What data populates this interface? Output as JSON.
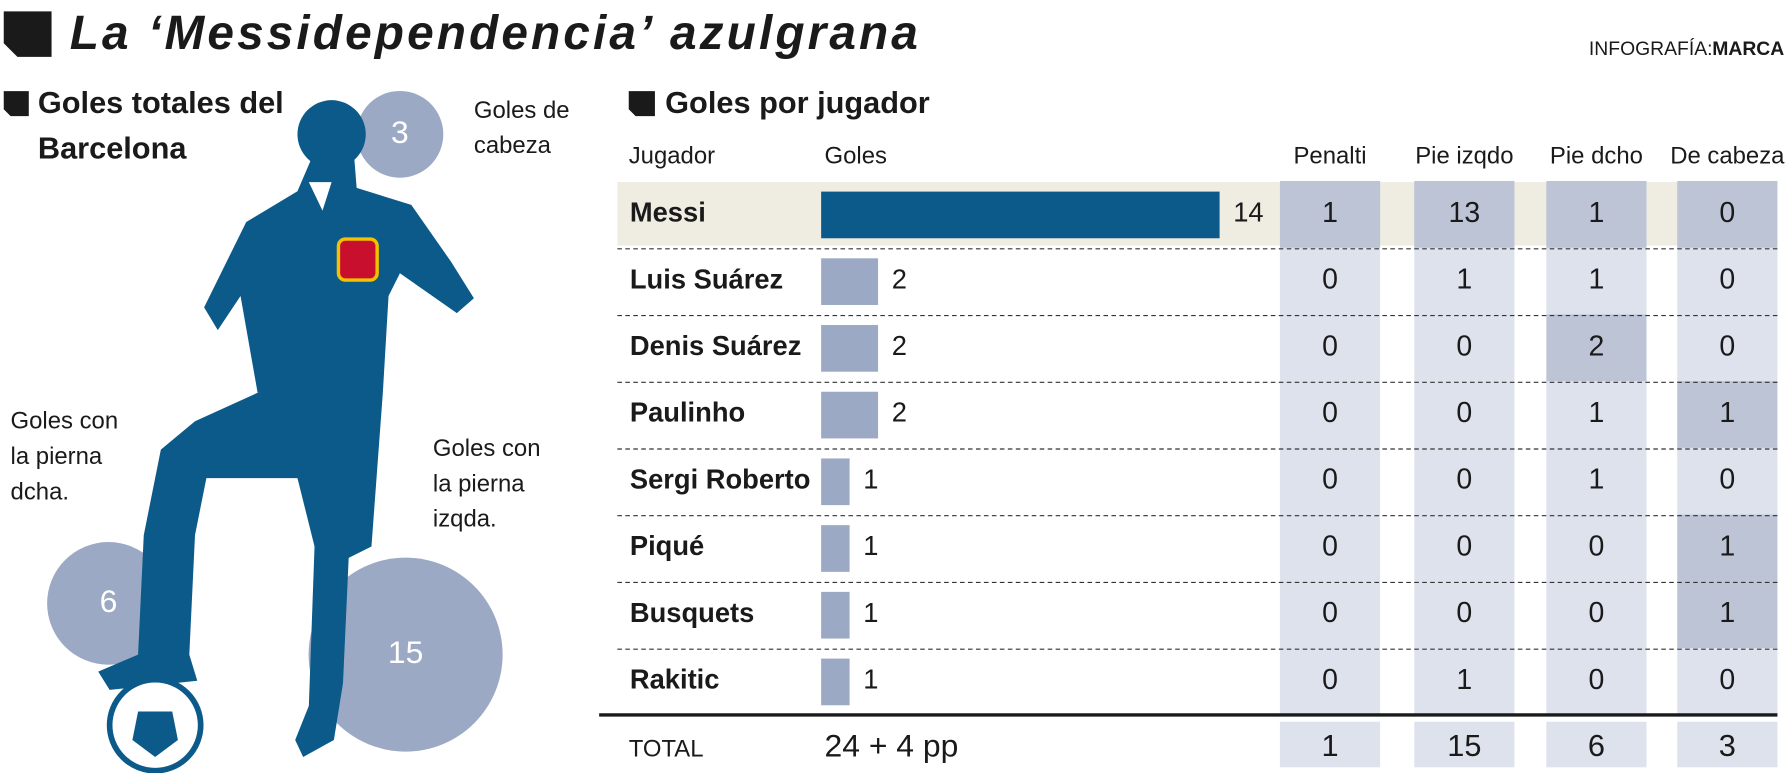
{
  "header": {
    "title": "La ‘Messidependencia’ azulgrana",
    "credit_prefix": "INFOGRAFÍA:",
    "credit_name": "MARCA"
  },
  "totals": {
    "title_lines": [
      "Goles totales del",
      "Barcelona"
    ],
    "bubbles": [
      {
        "label_lines": [
          "Goles de",
          "cabeza"
        ],
        "value": 3
      },
      {
        "label_lines": [
          "Goles con",
          "la pierna",
          "dcha."
        ],
        "value": 6
      },
      {
        "label_lines": [
          "Goles con",
          "la pierna",
          "izqda."
        ],
        "value": 15
      }
    ]
  },
  "players": {
    "title": "Goles por jugador",
    "columns": [
      "Jugador",
      "Goles",
      "Penalti",
      "Pie izqdo",
      "Pie dcho",
      "De cabeza"
    ],
    "rows": [
      {
        "name": "Messi",
        "goals": 14,
        "penalti": 1,
        "pie_izqdo": 13,
        "pie_dcho": 1,
        "cabeza": 0,
        "highlight": true
      },
      {
        "name": "Luis Suárez",
        "goals": 2,
        "penalti": 0,
        "pie_izqdo": 1,
        "pie_dcho": 1,
        "cabeza": 0
      },
      {
        "name": "Denis Suárez",
        "goals": 2,
        "penalti": 0,
        "pie_izqdo": 0,
        "pie_dcho": 2,
        "cabeza": 0
      },
      {
        "name": "Paulinho",
        "goals": 2,
        "penalti": 0,
        "pie_izqdo": 0,
        "pie_dcho": 1,
        "cabeza": 1
      },
      {
        "name": "Sergi Roberto",
        "goals": 1,
        "penalti": 0,
        "pie_izqdo": 0,
        "pie_dcho": 1,
        "cabeza": 0
      },
      {
        "name": "Piqué",
        "goals": 1,
        "penalti": 0,
        "pie_izqdo": 0,
        "pie_dcho": 0,
        "cabeza": 1
      },
      {
        "name": "Busquets",
        "goals": 1,
        "penalti": 0,
        "pie_izqdo": 0,
        "pie_dcho": 0,
        "cabeza": 1
      },
      {
        "name": "Rakitic",
        "goals": 1,
        "penalti": 0,
        "pie_izqdo": 1,
        "pie_dcho": 0,
        "cabeza": 0
      }
    ],
    "total": {
      "label": "TOTAL",
      "goals": "24 + 4 pp",
      "penalti": 1,
      "pie_izqdo": 15,
      "pie_dcho": 6,
      "cabeza": 3
    }
  },
  "colors": {
    "bar_leader": "#0b5a8a",
    "bar": "#9ba9c4",
    "cell": "#dde2ec",
    "cell_dark": "#bcc4d6",
    "row_highlight": "#efece2",
    "silhouette": "#0b5a8a"
  }
}
